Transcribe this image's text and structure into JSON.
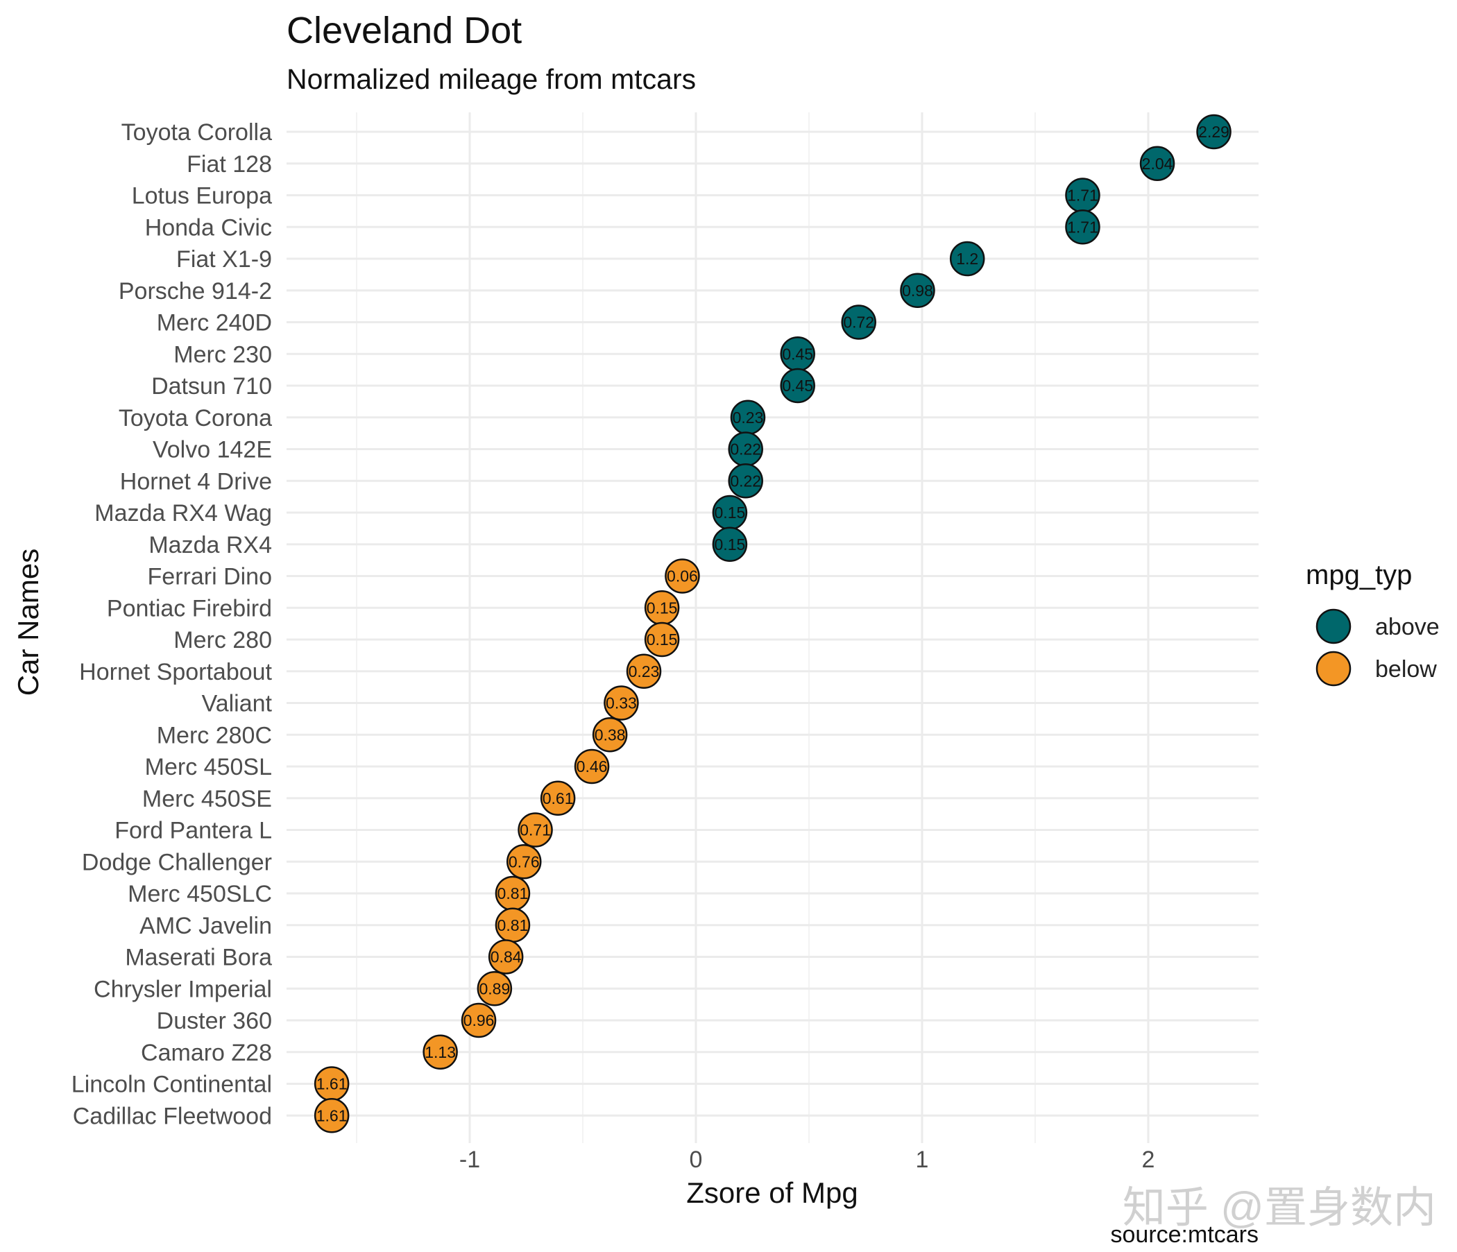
{
  "chart_data": {
    "type": "scatter",
    "title": "Cleveland Dot",
    "subtitle": "Normalized mileage from mtcars",
    "xlabel": "Zsore of Mpg",
    "ylabel": "Car Names",
    "caption": "source:mtcars",
    "watermark": "知乎 @置身数内",
    "xlim": [
      -1.8,
      2.5
    ],
    "xticks": [
      -1,
      0,
      1,
      2
    ],
    "xtick_labels": [
      "-1",
      "0",
      "1",
      "2"
    ],
    "grid": true,
    "legend": {
      "title": "mpg_typ",
      "position": "right",
      "entries": [
        {
          "label": "above",
          "color": "#00676b"
        },
        {
          "label": "below",
          "color": "#f39625"
        }
      ]
    },
    "colors": {
      "above": "#00676b",
      "below": "#f39625"
    },
    "points": [
      {
        "name": "Toyota Corolla",
        "x": 2.29,
        "label": "2.29",
        "type": "above"
      },
      {
        "name": "Fiat 128",
        "x": 2.04,
        "label": "2.04",
        "type": "above"
      },
      {
        "name": "Lotus Europa",
        "x": 1.71,
        "label": "1.71",
        "type": "above"
      },
      {
        "name": "Honda Civic",
        "x": 1.71,
        "label": "1.71",
        "type": "above"
      },
      {
        "name": "Fiat X1-9",
        "x": 1.2,
        "label": "1.2",
        "type": "above"
      },
      {
        "name": "Porsche 914-2",
        "x": 0.98,
        "label": "0.98",
        "type": "above"
      },
      {
        "name": "Merc 240D",
        "x": 0.72,
        "label": "0.72",
        "type": "above"
      },
      {
        "name": "Merc 230",
        "x": 0.45,
        "label": "0.45",
        "type": "above"
      },
      {
        "name": "Datsun 710",
        "x": 0.45,
        "label": "0.45",
        "type": "above"
      },
      {
        "name": "Toyota Corona",
        "x": 0.23,
        "label": "0.23",
        "type": "above"
      },
      {
        "name": "Volvo 142E",
        "x": 0.22,
        "label": "0.22",
        "type": "above"
      },
      {
        "name": "Hornet 4 Drive",
        "x": 0.22,
        "label": "0.22",
        "type": "above"
      },
      {
        "name": "Mazda RX4 Wag",
        "x": 0.15,
        "label": "0.15",
        "type": "above"
      },
      {
        "name": "Mazda RX4",
        "x": 0.15,
        "label": "0.15",
        "type": "above"
      },
      {
        "name": "Ferrari Dino",
        "x": -0.06,
        "label": "0.06",
        "type": "below"
      },
      {
        "name": "Pontiac Firebird",
        "x": -0.15,
        "label": "0.15",
        "type": "below"
      },
      {
        "name": "Merc 280",
        "x": -0.15,
        "label": "0.15",
        "type": "below"
      },
      {
        "name": "Hornet Sportabout",
        "x": -0.23,
        "label": "0.23",
        "type": "below"
      },
      {
        "name": "Valiant",
        "x": -0.33,
        "label": "0.33",
        "type": "below"
      },
      {
        "name": "Merc 280C",
        "x": -0.38,
        "label": "0.38",
        "type": "below"
      },
      {
        "name": "Merc 450SL",
        "x": -0.46,
        "label": "0.46",
        "type": "below"
      },
      {
        "name": "Merc 450SE",
        "x": -0.61,
        "label": "0.61",
        "type": "below"
      },
      {
        "name": "Ford Pantera L",
        "x": -0.71,
        "label": "0.71",
        "type": "below"
      },
      {
        "name": "Dodge Challenger",
        "x": -0.76,
        "label": "0.76",
        "type": "below"
      },
      {
        "name": "Merc 450SLC",
        "x": -0.81,
        "label": "0.81",
        "type": "below"
      },
      {
        "name": "AMC Javelin",
        "x": -0.81,
        "label": "0.81",
        "type": "below"
      },
      {
        "name": "Maserati Bora",
        "x": -0.84,
        "label": "0.84",
        "type": "below"
      },
      {
        "name": "Chrysler Imperial",
        "x": -0.89,
        "label": "0.89",
        "type": "below"
      },
      {
        "name": "Duster 360",
        "x": -0.96,
        "label": "0.96",
        "type": "below"
      },
      {
        "name": "Camaro Z28",
        "x": -1.13,
        "label": "1.13",
        "type": "below"
      },
      {
        "name": "Lincoln Continental",
        "x": -1.61,
        "label": "1.61",
        "type": "below"
      },
      {
        "name": "Cadillac Fleetwood",
        "x": -1.61,
        "label": "1.61",
        "type": "below"
      }
    ]
  }
}
